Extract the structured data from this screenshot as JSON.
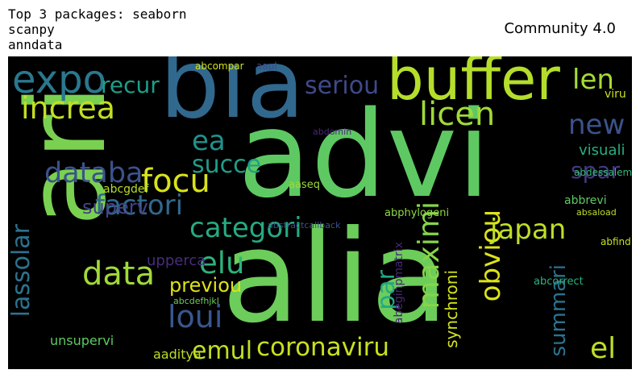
{
  "figure": {
    "title_left": "Top 3 packages: seaborn\nscanpy\nanndata",
    "title_right": "Community 4.0"
  },
  "wordcloud": {
    "words": [
      {
        "text": "advi",
        "color": "#5ec962"
      },
      {
        "text": "alia",
        "color": "#6ccd5a"
      },
      {
        "text": "ari",
        "color": "#7ad151"
      },
      {
        "text": "bia",
        "color": "#31688e"
      },
      {
        "text": "buffer",
        "color": "#b5de2b"
      },
      {
        "text": "expo",
        "color": "#2a788e"
      },
      {
        "text": "increa",
        "color": "#c2df23"
      },
      {
        "text": "databa",
        "color": "#3b528b"
      },
      {
        "text": "focu",
        "color": "#d8e219"
      },
      {
        "text": "factori",
        "color": "#31688e"
      },
      {
        "text": "categori",
        "color": "#25ab82"
      },
      {
        "text": "coronaviru",
        "color": "#c8e020"
      },
      {
        "text": "data",
        "color": "#a0da39"
      },
      {
        "text": "elu",
        "color": "#2db27d"
      },
      {
        "text": "loui",
        "color": "#39568c"
      },
      {
        "text": "emul",
        "color": "#c2df23"
      },
      {
        "text": "maximi",
        "color": "#86d549"
      },
      {
        "text": "obviou",
        "color": "#dde318"
      },
      {
        "text": "japan",
        "color": "#bddf26"
      },
      {
        "text": "licen",
        "color": "#a0da39"
      },
      {
        "text": "seriou",
        "color": "#3e4a89"
      },
      {
        "text": "len",
        "color": "#a5db36"
      },
      {
        "text": "new",
        "color": "#3b528b"
      },
      {
        "text": "ea",
        "color": "#21918c"
      },
      {
        "text": "succe",
        "color": "#1f9e89"
      },
      {
        "text": "recur",
        "color": "#1f9e89"
      },
      {
        "text": "spar",
        "color": "#443983"
      },
      {
        "text": "lassolar",
        "color": "#2c728e"
      },
      {
        "text": "previou",
        "color": "#dde318"
      },
      {
        "text": "superv",
        "color": "#414487"
      },
      {
        "text": "summari",
        "color": "#2c728e"
      },
      {
        "text": "el",
        "color": "#bddf26"
      },
      {
        "text": "par",
        "color": "#22a884"
      },
      {
        "text": "synchroni",
        "color": "#d2e21b"
      },
      {
        "text": "visuali",
        "color": "#29af7f"
      },
      {
        "text": "upperca",
        "color": "#472d7b"
      },
      {
        "text": "abeginpmatrix",
        "color": "#482677"
      },
      {
        "text": "unsupervi",
        "color": "#5ec962"
      },
      {
        "text": "aaditya",
        "color": "#bddf26"
      },
      {
        "text": "abphylogeni",
        "color": "#90d743"
      },
      {
        "text": "abcgdef",
        "color": "#b5de2b"
      },
      {
        "text": "viru",
        "color": "#c8e020"
      },
      {
        "text": "abcdefhjkl",
        "color": "#6ccd5a"
      },
      {
        "text": "abcorrect",
        "color": "#2db27d"
      },
      {
        "text": "aaseq",
        "color": "#a0da39"
      },
      {
        "text": "abbrevi",
        "color": "#5ec962"
      },
      {
        "text": "abdessalem",
        "color": "#35b779"
      },
      {
        "text": "absaload",
        "color": "#bddf26"
      },
      {
        "text": "abcompar",
        "color": "#d2e21b"
      },
      {
        "text": "aapl",
        "color": "#3e4a89"
      },
      {
        "text": "abfind",
        "color": "#c8e020"
      },
      {
        "text": "abdomin",
        "color": "#482878"
      },
      {
        "text": "abstractcallback",
        "color": "#3b528b"
      }
    ]
  }
}
